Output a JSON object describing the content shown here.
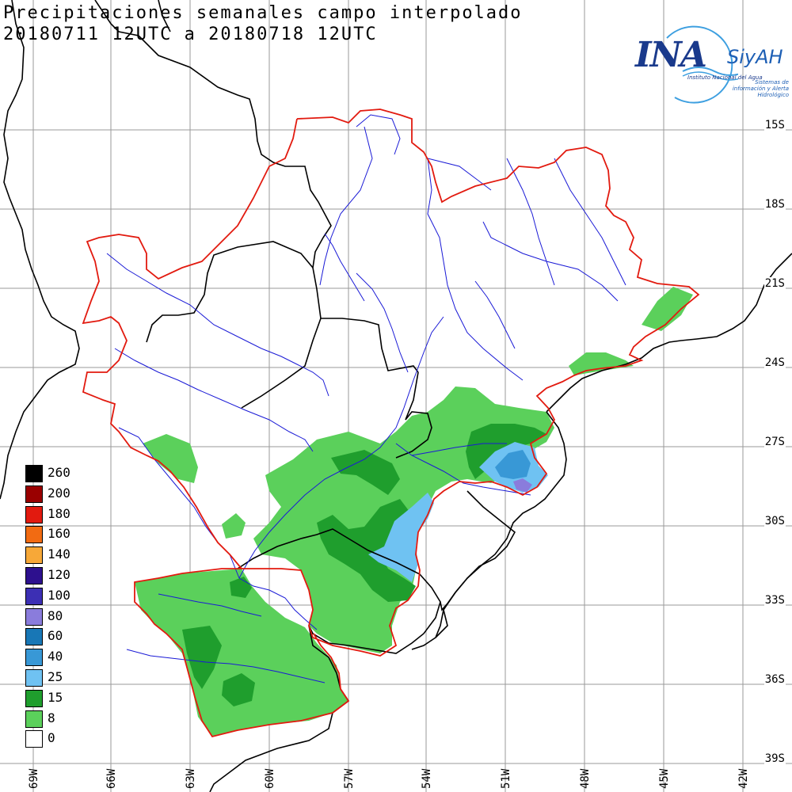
{
  "title": {
    "line1": "Precipitaciones semanales campo interpolado",
    "line2": "20180711 12UTC a 20180718 12UTC"
  },
  "logo": {
    "ina": "INA",
    "siyah": "SiyAH",
    "sub1": "Instituto Nacional del Agua",
    "sub2": "Sistemas de información y Alerta Hidrológico"
  },
  "legend": [
    {
      "label": "260",
      "color": "#000000"
    },
    {
      "label": "200",
      "color": "#9a0000"
    },
    {
      "label": "180",
      "color": "#e21a0f"
    },
    {
      "label": "160",
      "color": "#f26b12"
    },
    {
      "label": "140",
      "color": "#f7a838"
    },
    {
      "label": "120",
      "color": "#2d108e"
    },
    {
      "label": "100",
      "color": "#3c2fb4"
    },
    {
      "label": "80",
      "color": "#8a7cdc"
    },
    {
      "label": "60",
      "color": "#1877b6"
    },
    {
      "label": "40",
      "color": "#3898d6"
    },
    {
      "label": "25",
      "color": "#6fc2f2"
    },
    {
      "label": "15",
      "color": "#1f9e2d"
    },
    {
      "label": "8",
      "color": "#5bd05b"
    },
    {
      "label": "0",
      "color": "#ffffff"
    }
  ],
  "lat_labels": [
    "15S",
    "18S",
    "21S",
    "24S",
    "27S",
    "30S",
    "33S",
    "36S",
    "39S"
  ],
  "lon_labels": [
    "69W",
    "66W",
    "63W",
    "60W",
    "57W",
    "54W",
    "51W",
    "48W",
    "45W",
    "42W"
  ],
  "colors": {
    "basin_border": "#e21a0f",
    "rivers": "#1a1ad6",
    "borders": "#000000",
    "grid": "#9a9a9a"
  }
}
